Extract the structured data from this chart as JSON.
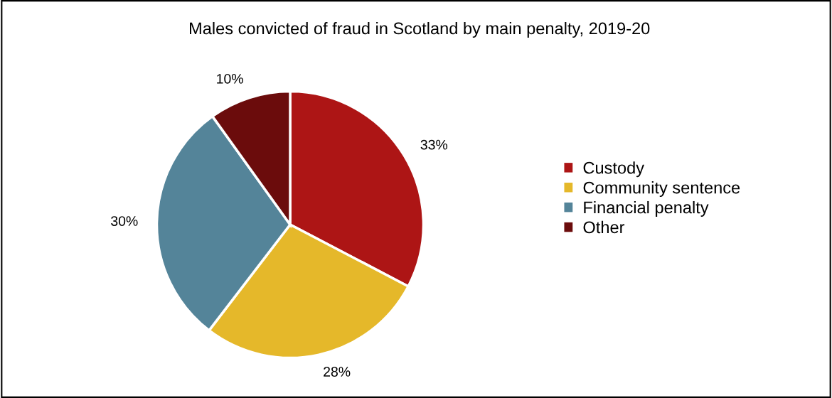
{
  "chart_data": {
    "type": "pie",
    "title": "Males convicted of fraud in Scotland by main penalty, 2019-20",
    "categories": [
      "Custody",
      "Community sentence",
      "Financial penalty",
      "Other"
    ],
    "values": [
      33,
      28,
      30,
      10
    ],
    "colors": [
      "#ad1515",
      "#e5b82a",
      "#548499",
      "#6b0c0c"
    ],
    "value_labels": [
      "33%",
      "28%",
      "30%",
      "10%"
    ],
    "legend": "right"
  }
}
